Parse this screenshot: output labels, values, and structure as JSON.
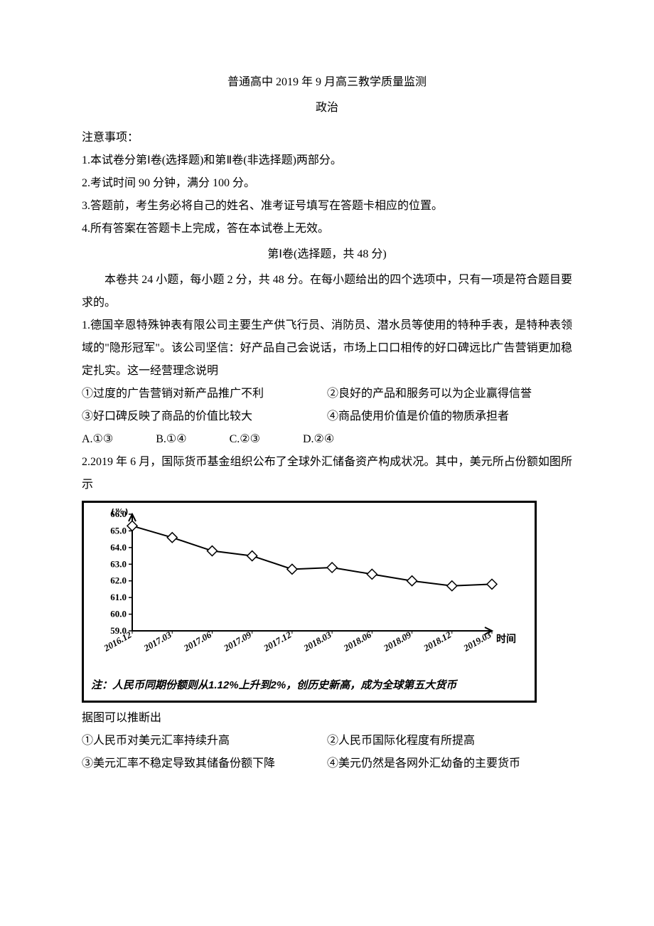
{
  "header": {
    "title": "普通高中 2019 年 9 月高三教学质量监测",
    "subject": "政治"
  },
  "notice": {
    "heading": "注意事项：",
    "items": [
      "1.本试卷分第Ⅰ卷(选择题)和第Ⅱ卷(非选择题)两部分。",
      "2.考试时间 90 分钟，满分 100 分。",
      "3.答题前，考生务必将自己的姓名、准考证号填写在答题卡相应的位置。",
      "4.所有答案在答题卡上完成，答在本试卷上无效。"
    ]
  },
  "section1": {
    "heading": "第Ⅰ卷(选择题，共 48 分)",
    "intro": "本卷共 24 小题，每小题 2 分，共 48 分。在每小题给出的四个选项中，只有一项是符合题目要求的。"
  },
  "q1": {
    "stem": "1.德国辛恩特殊钟表有限公司主要生产供飞行员、消防员、潜水员等使用的特种手表，是特种表领域的\"隐形冠军\"。该公司坚信：好产品自己会说话，市场上口口相传的好口碑远比广告营销更加稳定扎实。这一经营理念说明",
    "s1": "①过度的广告营销对新产品推广不利",
    "s2": "②良好的产品和服务可以为企业赢得信誉",
    "s3": "③好口碑反映了商品的价值比较大",
    "s4": "④商品使用价值是价值的物质承担者",
    "optA": "A.①③",
    "optB": "B.①④",
    "optC": "C.②③",
    "optD": "D.②④"
  },
  "q2": {
    "stem": "2.2019 年 6 月，国际货币基金组织公布了全球外汇储备资产构成状况。其中，美元所占份额如图所示",
    "chart": {
      "type": "line",
      "y_label": "(%)",
      "x_label": "时间",
      "y_ticks": [
        "59.0",
        "60.0",
        "61.0",
        "62.0",
        "63.0",
        "64.0",
        "65.0",
        "66.0"
      ],
      "x_ticks": [
        "2016.12",
        "2017.03",
        "2017.06",
        "2017.09",
        "2017.12",
        "2018.03",
        "2018.06",
        "2018.09",
        "2018.12",
        "2019.03"
      ],
      "values": [
        65.3,
        64.6,
        63.8,
        63.5,
        62.7,
        62.8,
        62.4,
        62.0,
        61.7,
        61.8
      ],
      "line_color": "#000000",
      "marker": "diamond",
      "marker_fill": "#ffffff",
      "marker_stroke": "#000000",
      "marker_size": 7,
      "axis_color": "#000000",
      "font_size_axis": 13,
      "font_family_axis": "SimHei",
      "note": "注：人民币同期份额则从1.12%上升到2%，创历史新高，成为全球第五大货币"
    },
    "after": "据图可以推断出",
    "s1": "①人民币对美元汇率持续升高",
    "s2": "②人民币国际化程度有所提高",
    "s3": "③美元汇率不稳定导致其储备份额下降",
    "s4": "④美元仍然是各网外汇幼备的主要货币"
  }
}
